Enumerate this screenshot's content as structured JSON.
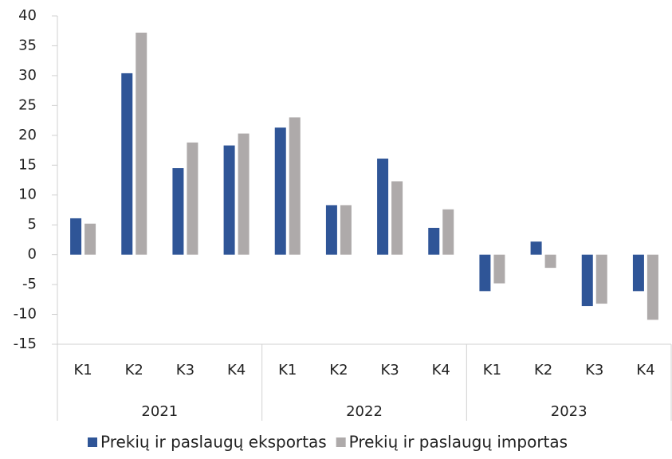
{
  "chart_data": {
    "type": "bar",
    "categories": [
      "K1",
      "K2",
      "K3",
      "K4",
      "K1",
      "K2",
      "K3",
      "K4",
      "K1",
      "K2",
      "K3",
      "K4"
    ],
    "category_groups": [
      "2021",
      "2022",
      "2023"
    ],
    "series": [
      {
        "name": "Prekių ir paslaugų eksportas",
        "color": "#2f5597",
        "values": [
          6.1,
          30.4,
          14.5,
          18.3,
          21.3,
          8.3,
          16.1,
          4.5,
          -6.1,
          2.2,
          -8.6,
          -6.1
        ]
      },
      {
        "name": "Prekių ir paslaugų importas",
        "color": "#aeaaaa",
        "values": [
          5.2,
          37.2,
          18.8,
          20.3,
          23.0,
          8.3,
          12.3,
          7.6,
          -4.8,
          -2.2,
          -8.2,
          -10.9
        ]
      }
    ],
    "ylim": [
      -15,
      40
    ],
    "yticks": [
      -15,
      -10,
      -5,
      0,
      5,
      10,
      15,
      20,
      25,
      30,
      35,
      40
    ],
    "legend": "bottom"
  }
}
